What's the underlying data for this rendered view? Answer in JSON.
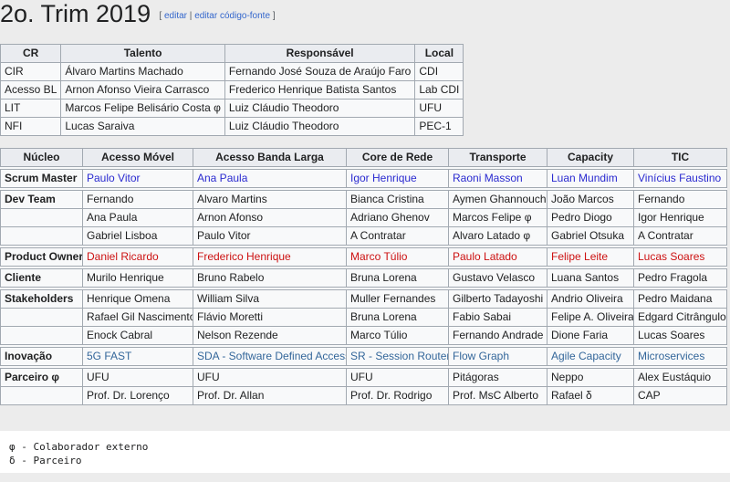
{
  "heading": {
    "title": "2o. Trim 2019",
    "bracket_open": "[",
    "edit": "editar",
    "separator": "|",
    "edit_source": "editar código-fonte",
    "bracket_close": "]"
  },
  "table1": {
    "headers": [
      "CR",
      "Talento",
      "Responsável",
      "Local"
    ],
    "rows": [
      [
        "CIR",
        "Álvaro Martins Machado",
        "Fernando José Souza de Araújo Faro",
        "CDI"
      ],
      [
        "Acesso BL",
        "Arnon Afonso Vieira Carrasco",
        "Frederico Henrique Batista Santos",
        "Lab CDI"
      ],
      [
        "LIT",
        "Marcos Felipe Belisário Costa φ",
        "Luiz Cláudio Theodoro",
        "UFU"
      ],
      [
        "NFI",
        "Lucas Saraiva",
        "Luiz Cláudio Theodoro",
        "PEC-1"
      ]
    ]
  },
  "table2": {
    "headers": [
      "Núcleo",
      "Acesso Móvel",
      "Acesso Banda Larga",
      "Core de Rede",
      "Transporte",
      "Capacity",
      "TIC"
    ],
    "groups": [
      {
        "label": "Scrum Master",
        "color": "#2a2ad0",
        "rows": [
          [
            "Paulo Vitor",
            "Ana Paula",
            "Igor Henrique",
            "Raoni Masson",
            "Luan Mundim",
            "Vinícius Faustino"
          ]
        ]
      },
      {
        "label": "Dev Team",
        "rows": [
          [
            "Fernando",
            "Alvaro Martins",
            "Bianca Cristina",
            "Aymen Ghannouchi",
            "João Marcos",
            "Fernando"
          ],
          [
            "Ana Paula",
            "Arnon Afonso",
            "Adriano Ghenov",
            "Marcos Felipe φ",
            "Pedro Diogo",
            "Igor Henrique"
          ],
          [
            "Gabriel Lisboa",
            "Paulo Vitor",
            "A Contratar",
            "Alvaro Latado φ",
            "Gabriel Otsuka",
            "A Contratar"
          ]
        ]
      },
      {
        "label": "Product Owner",
        "color": "#cc1111",
        "rows": [
          [
            "Daniel Ricardo",
            "Frederico Henrique",
            "Marco Túlio",
            "Paulo Latado",
            "Felipe Leite",
            "Lucas Soares"
          ]
        ]
      },
      {
        "label": "Cliente",
        "rows": [
          [
            "Murilo Henrique",
            "Bruno Rabelo",
            "Bruna Lorena",
            "Gustavo Velasco",
            "Luana Santos",
            "Pedro Fragola"
          ]
        ]
      },
      {
        "label": "Stakeholders",
        "rows": [
          [
            "Henrique Omena",
            "William Silva",
            "Muller Fernandes",
            "Gilberto Tadayoshi",
            "Andrio Oliveira",
            "Pedro Maidana"
          ],
          [
            "Rafael Gil Nascimento",
            "Flávio Moretti",
            "Bruna Lorena",
            "Fabio Sabai",
            "Felipe A. Oliveira",
            "Edgard Citrângulo"
          ],
          [
            "Enock Cabral",
            "Nelson Rezende",
            "Marco Túlio",
            "Fernando Andrade",
            "Dione Faria",
            "Lucas Soares"
          ]
        ]
      },
      {
        "label": "Inovação",
        "color": "#33669a",
        "rows": [
          [
            "5G FAST",
            "SDA - Software Defined Access",
            "SR - Session Router",
            "Flow Graph",
            "Agile Capacity",
            "Microservices"
          ]
        ]
      },
      {
        "label": "Parceiro φ",
        "rows": [
          [
            "UFU",
            "UFU",
            "UFU",
            "Pitágoras",
            "Neppo",
            "Alex Eustáquio"
          ],
          [
            "Prof. Dr. Lorenço",
            "Prof. Dr. Allan",
            "Prof. Dr. Rodrigo",
            "Prof. MsC Alberto",
            "Rafael δ",
            "CAP"
          ]
        ]
      }
    ]
  },
  "legend": {
    "lines": [
      "φ - Colaborador externo",
      "δ - Parceiro"
    ]
  }
}
